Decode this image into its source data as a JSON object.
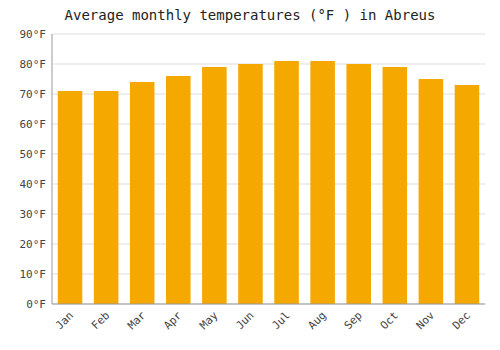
{
  "chart_data": {
    "type": "bar",
    "title": "Average monthly temperatures (°F ) in Abreus",
    "categories": [
      "Jan",
      "Feb",
      "Mar",
      "Apr",
      "May",
      "Jun",
      "Jul",
      "Aug",
      "Sep",
      "Oct",
      "Nov",
      "Dec"
    ],
    "values": [
      71,
      71,
      74,
      76,
      79,
      80,
      81,
      81,
      80,
      79,
      75,
      73
    ],
    "color": "#F5A800",
    "ylim": [
      0,
      90
    ],
    "yticks": [
      {
        "value": 0,
        "label": "0°F"
      },
      {
        "value": 10,
        "label": "10°F"
      },
      {
        "value": 20,
        "label": "20°F"
      },
      {
        "value": 30,
        "label": "30°F"
      },
      {
        "value": 40,
        "label": "40°F"
      },
      {
        "value": 50,
        "label": "50°F"
      },
      {
        "value": 60,
        "label": "60°F"
      },
      {
        "value": 70,
        "label": "70°F"
      },
      {
        "value": 80,
        "label": "80°F"
      },
      {
        "value": 90,
        "label": "90°F"
      }
    ],
    "grid": true
  }
}
